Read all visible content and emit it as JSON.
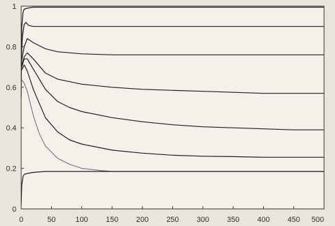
{
  "colors": {
    "background": "#e9e7dd",
    "plot_area": "#f3f1ea",
    "axis": "#333333",
    "series_dark": "#1c1c1c",
    "series_light": "#7c7c7c"
  },
  "chart_data": {
    "type": "line",
    "title": "",
    "xlabel": "",
    "ylabel": "",
    "xlim": [
      0,
      500
    ],
    "ylim": [
      0,
      1
    ],
    "x_ticks": [
      "0",
      "50",
      "100",
      "150",
      "200",
      "250",
      "300",
      "350",
      "400",
      "450",
      "500"
    ],
    "y_ticks": [
      "0",
      "0.2",
      "0.4",
      "0.6",
      "0.8",
      "1"
    ],
    "grid": false,
    "legend": "none",
    "series": [
      {
        "color": "#1c1c1c",
        "x": [
          0,
          1,
          3,
          5,
          10,
          20,
          50,
          100,
          200,
          300,
          400,
          500
        ],
        "y": [
          0.55,
          0.9,
          0.97,
          0.985,
          0.99,
          0.995,
          0.995,
          0.995,
          0.995,
          0.995,
          0.995,
          0.995
        ]
      },
      {
        "color": "#1c1c1c",
        "x": [
          0,
          2,
          5,
          8,
          12,
          20,
          40,
          100,
          200,
          300,
          400,
          500
        ],
        "y": [
          0.72,
          0.85,
          0.91,
          0.92,
          0.905,
          0.9,
          0.9,
          0.9,
          0.9,
          0.9,
          0.9,
          0.9
        ]
      },
      {
        "color": "#1c1c1c",
        "x": [
          0,
          5,
          10,
          20,
          40,
          60,
          80,
          100,
          150,
          200,
          300,
          400,
          500
        ],
        "y": [
          0.72,
          0.8,
          0.84,
          0.82,
          0.79,
          0.775,
          0.77,
          0.765,
          0.76,
          0.76,
          0.76,
          0.76,
          0.76
        ]
      },
      {
        "color": "#1c1c1c",
        "x": [
          0,
          5,
          10,
          20,
          40,
          60,
          100,
          150,
          200,
          250,
          300,
          350,
          400,
          500
        ],
        "y": [
          0.7,
          0.75,
          0.77,
          0.74,
          0.67,
          0.64,
          0.615,
          0.6,
          0.59,
          0.585,
          0.58,
          0.575,
          0.57,
          0.57
        ]
      },
      {
        "color": "#1c1c1c",
        "x": [
          0,
          5,
          10,
          20,
          40,
          60,
          80,
          100,
          150,
          200,
          250,
          300,
          350,
          400,
          450,
          500
        ],
        "y": [
          0.69,
          0.74,
          0.74,
          0.69,
          0.59,
          0.53,
          0.5,
          0.48,
          0.45,
          0.43,
          0.415,
          0.405,
          0.4,
          0.395,
          0.39,
          0.39
        ]
      },
      {
        "color": "#1c1c1c",
        "x": [
          0,
          5,
          10,
          20,
          40,
          60,
          80,
          100,
          150,
          200,
          250,
          300,
          350,
          400,
          450,
          500
        ],
        "y": [
          0.68,
          0.71,
          0.68,
          0.59,
          0.45,
          0.38,
          0.34,
          0.32,
          0.29,
          0.275,
          0.265,
          0.26,
          0.258,
          0.255,
          0.255,
          0.255
        ]
      },
      {
        "color": "#7c7c7c",
        "x": [
          0,
          5,
          10,
          20,
          30,
          40,
          60,
          80,
          100,
          130,
          150,
          200,
          300,
          400,
          500
        ],
        "y": [
          0.64,
          0.62,
          0.58,
          0.46,
          0.37,
          0.31,
          0.25,
          0.22,
          0.2,
          0.19,
          0.185,
          0.185,
          0.185,
          0.185,
          0.185
        ]
      },
      {
        "color": "#1c1c1c",
        "x": [
          0,
          1,
          3,
          5,
          10,
          20,
          40,
          100,
          200,
          300,
          400,
          500
        ],
        "y": [
          0.02,
          0.12,
          0.16,
          0.17,
          0.175,
          0.18,
          0.185,
          0.185,
          0.185,
          0.185,
          0.185,
          0.185
        ]
      }
    ]
  }
}
